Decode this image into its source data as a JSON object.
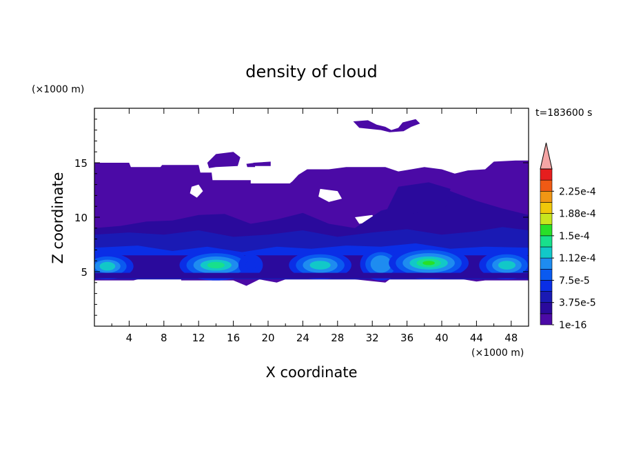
{
  "chart_data": {
    "type": "heatmap",
    "title": "density of cloud",
    "xlabel": "X coordinate",
    "ylabel": "Z coordinate",
    "x_unit": "(×1000 m)",
    "y_unit": "(×1000 m)",
    "time_label": "t=183600 s",
    "xlim": [
      0,
      50
    ],
    "ylim": [
      0,
      20
    ],
    "x_ticks": [
      "4",
      "8",
      "12",
      "16",
      "20",
      "24",
      "28",
      "32",
      "36",
      "40",
      "44",
      "48"
    ],
    "y_ticks": [
      "5",
      "10",
      "15"
    ],
    "colorbar": {
      "levels": [
        1e-16,
        1.875e-05,
        3.75e-05,
        5.625e-05,
        7.5e-05,
        9.375e-05,
        0.0001125,
        0.00013125,
        0.00015,
        0.00016875,
        0.0001875,
        0.00020625,
        0.000225,
        0.00024375
      ],
      "tick_labels": [
        "1e-16",
        "3.75e-5",
        "7.5e-5",
        "1.12e-4",
        "1.5e-4",
        "1.88e-4",
        "2.25e-4"
      ],
      "colors": [
        "#4b0aa6",
        "#2a0a9c",
        "#1a1ab4",
        "#0a2ee6",
        "#0a5af0",
        "#1e8cf0",
        "#12c8c8",
        "#18e08c",
        "#28e028",
        "#c8e61e",
        "#f0c80a",
        "#f09614",
        "#f05a14",
        "#e61e1e"
      ],
      "overflow_color": "#f5a5a5"
    },
    "cloud_layers": [
      {
        "level": 0,
        "description_units": "km",
        "z_range": [
          4.2,
          15.0
        ],
        "x_range": [
          0,
          50
        ]
      },
      {
        "level": 1,
        "z_range": [
          4.2,
          9.0
        ],
        "x_range": [
          0,
          50
        ]
      }
    ],
    "cloud_cells": [
      {
        "x": 1.5,
        "z": 5.5,
        "peak": 0.0001125
      },
      {
        "x": 14.0,
        "z": 5.6,
        "peak": 0.00013125
      },
      {
        "x": 18.0,
        "z": 5.6,
        "peak": 5.625e-05
      },
      {
        "x": 26.0,
        "z": 5.6,
        "peak": 0.0001125
      },
      {
        "x": 33.0,
        "z": 5.7,
        "peak": 9.375e-05
      },
      {
        "x": 38.5,
        "z": 5.8,
        "peak": 0.00015
      },
      {
        "x": 47.5,
        "z": 5.6,
        "peak": 0.0001125
      }
    ]
  }
}
